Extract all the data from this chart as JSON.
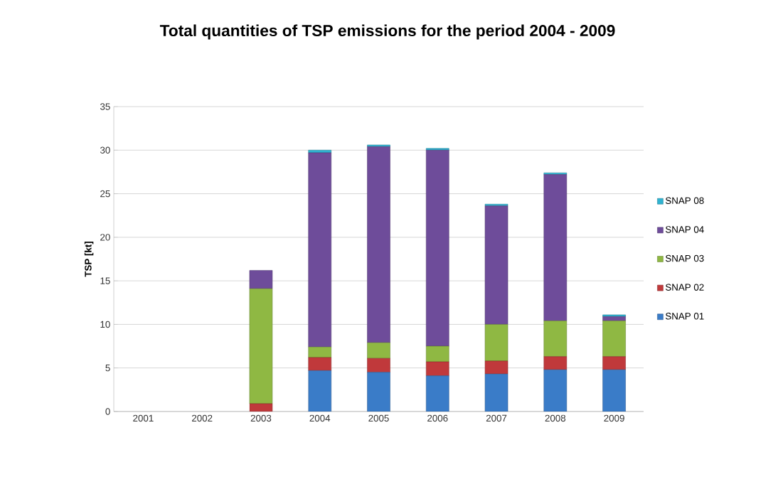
{
  "chart_data": {
    "type": "bar",
    "stacked": true,
    "title": "Total quantities of TSP emissions for the period 2004 - 2009",
    "ylabel": "TSP [kt]",
    "categories": [
      "2001",
      "2002",
      "2003",
      "2004",
      "2005",
      "2006",
      "2007",
      "2008",
      "2009"
    ],
    "series": [
      {
        "name": "SNAP 01",
        "color": "#3a7cc8",
        "values": [
          0,
          0,
          0,
          4.7,
          4.5,
          4.1,
          4.3,
          4.8,
          4.8
        ]
      },
      {
        "name": "SNAP 02",
        "color": "#c0393b",
        "values": [
          0,
          0,
          0.9,
          1.5,
          1.6,
          1.6,
          1.5,
          1.5,
          1.5
        ]
      },
      {
        "name": "SNAP 03",
        "color": "#8fb843",
        "values": [
          0,
          0,
          13.2,
          1.2,
          1.8,
          1.8,
          4.2,
          4.1,
          4.1
        ]
      },
      {
        "name": "SNAP 04",
        "color": "#6e4c9a",
        "values": [
          0,
          0,
          2.1,
          22.3,
          22.5,
          22.5,
          13.6,
          16.8,
          0.5
        ]
      },
      {
        "name": "SNAP 08",
        "color": "#2fb3d1",
        "values": [
          0,
          0,
          0,
          0.3,
          0.2,
          0.2,
          0.2,
          0.2,
          0.2
        ]
      }
    ],
    "ylim": [
      0,
      35
    ],
    "yticks": [
      0,
      5,
      10,
      15,
      20,
      25,
      30,
      35
    ],
    "grid": "y",
    "legend": "right"
  }
}
